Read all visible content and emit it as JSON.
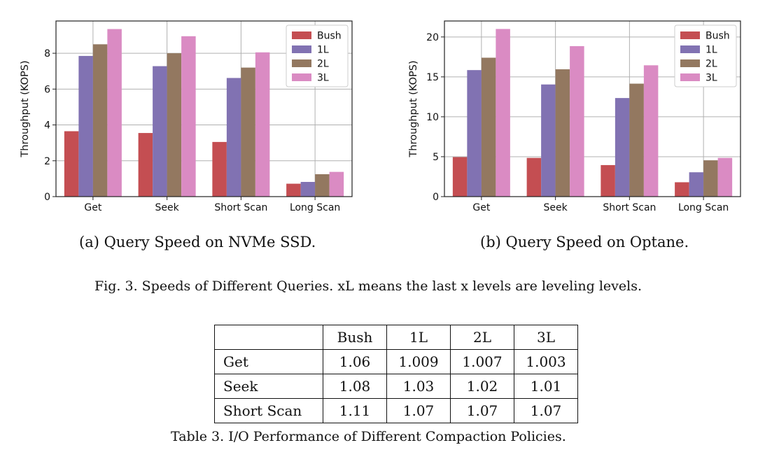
{
  "chart_data": [
    {
      "type": "bar",
      "categories": [
        "Get",
        "Seek",
        "Short Scan",
        "Long Scan"
      ],
      "series": [
        {
          "name": "Bush",
          "values": [
            3.65,
            3.55,
            3.05,
            0.72
          ],
          "color": "#c44e52"
        },
        {
          "name": "1L",
          "values": [
            7.85,
            7.28,
            6.62,
            0.82
          ],
          "color": "#8172b2"
        },
        {
          "name": "2L",
          "values": [
            8.5,
            8.0,
            7.2,
            1.25
          ],
          "color": "#937860"
        },
        {
          "name": "3L",
          "values": [
            9.35,
            8.95,
            8.05,
            1.38
          ],
          "color": "#da8bc3"
        }
      ],
      "ylabel": "Throughput (KOPS)",
      "xlabel": "",
      "ylim": [
        0,
        9.8
      ],
      "yticks": [
        0,
        2,
        4,
        6,
        8
      ],
      "grid": true,
      "legend_position": "top-right",
      "caption": "(a) Query Speed on NVMe SSD."
    },
    {
      "type": "bar",
      "categories": [
        "Get",
        "Seek",
        "Short Scan",
        "Long Scan"
      ],
      "series": [
        {
          "name": "Bush",
          "values": [
            4.95,
            4.85,
            3.95,
            1.8
          ],
          "color": "#c44e52"
        },
        {
          "name": "1L",
          "values": [
            15.85,
            14.05,
            12.35,
            3.05
          ],
          "color": "#8172b2"
        },
        {
          "name": "2L",
          "values": [
            17.4,
            15.95,
            14.15,
            4.55
          ],
          "color": "#937860"
        },
        {
          "name": "3L",
          "values": [
            21.0,
            18.85,
            16.45,
            4.85
          ],
          "color": "#da8bc3"
        }
      ],
      "ylabel": "Throughput (KOPS)",
      "xlabel": "",
      "ylim": [
        0,
        22
      ],
      "yticks": [
        0,
        5,
        10,
        15,
        20
      ],
      "grid": true,
      "legend_position": "top-right",
      "caption": "(b) Query Speed on Optane."
    }
  ],
  "figure_caption": "Fig. 3.  Speeds of Different Queries. xL means the last x levels are leveling levels.",
  "table": {
    "headers": [
      "",
      "Bush",
      "1L",
      "2L",
      "3L"
    ],
    "rows": [
      {
        "label": "Get",
        "cells": [
          "1.06",
          "1.009",
          "1.007",
          "1.003"
        ]
      },
      {
        "label": "Seek",
        "cells": [
          "1.08",
          "1.03",
          "1.02",
          "1.01"
        ]
      },
      {
        "label": "Short Scan",
        "cells": [
          "1.11",
          "1.07",
          "1.07",
          "1.07"
        ]
      }
    ],
    "caption": "Table 3.  I/O Performance of Different Compaction Policies."
  }
}
